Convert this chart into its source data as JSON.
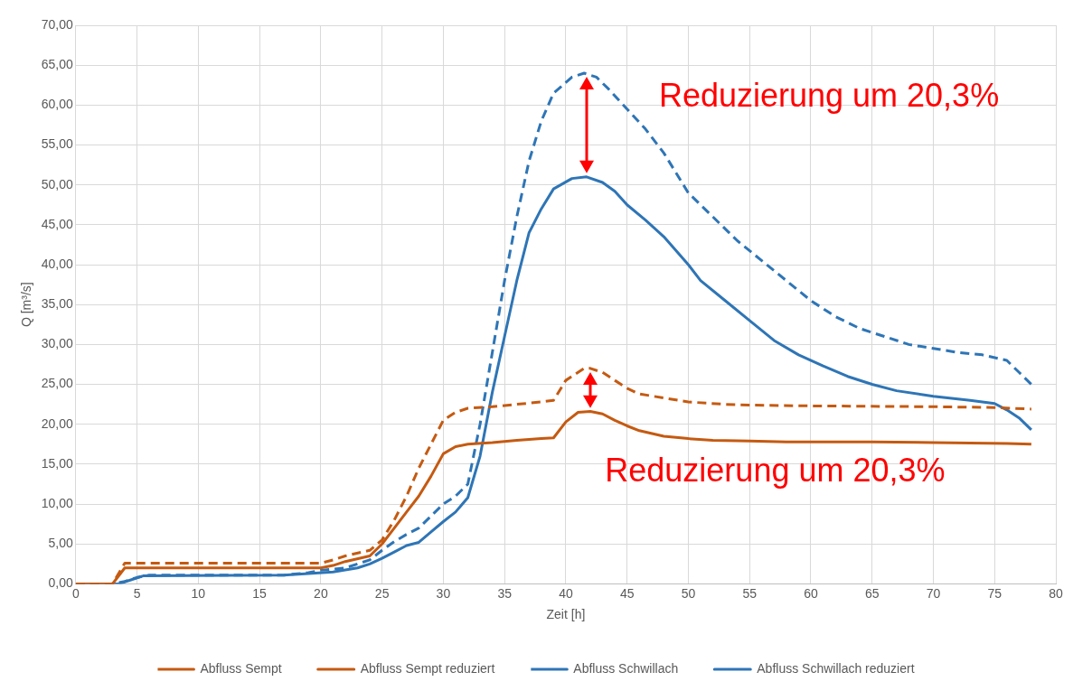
{
  "chart_data": {
    "type": "line",
    "xlabel": "Zeit [h]",
    "ylabel": "Q [m³/s]",
    "xlim": [
      0,
      80
    ],
    "xticks": [
      0,
      5,
      10,
      15,
      20,
      25,
      30,
      35,
      40,
      45,
      50,
      55,
      60,
      65,
      70,
      75,
      80
    ],
    "ylim": [
      0,
      70
    ],
    "yticks": [
      {
        "value": 0,
        "label": "0,00"
      },
      {
        "value": 5,
        "label": "5,00"
      },
      {
        "value": 10,
        "label": "10,00"
      },
      {
        "value": 15,
        "label": "15,00"
      },
      {
        "value": 20,
        "label": "20,00"
      },
      {
        "value": 25,
        "label": "25,00"
      },
      {
        "value": 30,
        "label": "30,00"
      },
      {
        "value": 35,
        "label": "35,00"
      },
      {
        "value": 40,
        "label": "40,00"
      },
      {
        "value": 45,
        "label": "45,00"
      },
      {
        "value": 50,
        "label": "50,00"
      },
      {
        "value": 55,
        "label": "55,00"
      },
      {
        "value": 60,
        "label": "60,00"
      },
      {
        "value": 65,
        "label": "65,00"
      },
      {
        "value": 70,
        "label": "70,00"
      }
    ],
    "grid": true,
    "legend": "bottom",
    "marker": "none",
    "series": [
      {
        "name": "Abfluss Sempt",
        "color": "#c55a11",
        "line_style": "dashed",
        "x": [
          0,
          3,
          4,
          20,
          21,
          22,
          24,
          25,
          26,
          27,
          28,
          29,
          30,
          31,
          32,
          34,
          36,
          38,
          39,
          40,
          41.5,
          42,
          43,
          44,
          45,
          46,
          48,
          50,
          53,
          55,
          60,
          70,
          75,
          78
        ],
        "values": [
          0,
          0,
          2.6,
          2.6,
          3,
          3.5,
          4.2,
          5.5,
          8,
          11,
          14.5,
          17.5,
          20.5,
          21.5,
          22,
          22.2,
          22.5,
          22.8,
          23,
          25.5,
          27,
          27,
          26.5,
          25.5,
          24.5,
          23.8,
          23.3,
          22.8,
          22.5,
          22.4,
          22.3,
          22.2,
          22.1,
          21.9
        ]
      },
      {
        "name": "Abfluss Sempt reduziert",
        "color": "#c55a11",
        "line_style": "solid",
        "x": [
          0,
          3,
          4,
          20,
          21,
          22,
          24,
          25,
          26,
          27,
          28,
          29,
          30,
          31,
          32,
          34,
          36,
          38,
          39,
          40,
          41,
          42,
          43,
          44,
          45,
          46,
          48,
          50,
          52,
          55,
          58,
          65,
          70,
          76,
          78
        ],
        "values": [
          0,
          0,
          2,
          2,
          2.3,
          2.8,
          3.5,
          5,
          7,
          9,
          11,
          13.5,
          16.3,
          17.2,
          17.5,
          17.7,
          18,
          18.2,
          18.3,
          20.3,
          21.5,
          21.6,
          21.3,
          20.5,
          19.8,
          19.2,
          18.5,
          18.2,
          18,
          17.9,
          17.8,
          17.8,
          17.7,
          17.6,
          17.5
        ]
      },
      {
        "name": "Abfluss Schwillach",
        "color": "#2e75b6",
        "line_style": "dashed",
        "x": [
          0,
          3,
          4,
          5,
          6,
          17,
          19,
          20,
          22,
          24,
          25,
          26,
          27,
          28,
          29,
          30,
          31,
          32,
          33,
          34,
          35,
          36,
          37,
          38,
          39,
          40.5,
          41.5,
          42.5,
          43.5,
          45,
          46.5,
          48,
          50,
          52,
          54,
          56,
          58,
          60,
          62,
          64,
          66,
          68,
          70,
          72,
          74,
          76,
          77,
          78
        ],
        "values": [
          0,
          0,
          0.3,
          0.8,
          1.1,
          1.1,
          1.4,
          1.7,
          2,
          3,
          4.2,
          5.3,
          6.2,
          7,
          8.5,
          10,
          11,
          12.5,
          20,
          29,
          38,
          46,
          53,
          58,
          61.5,
          63.5,
          64,
          63.5,
          62,
          59.5,
          57,
          54,
          49,
          46,
          43,
          40.5,
          38,
          35.5,
          33.5,
          32,
          31,
          30,
          29.5,
          29,
          28.7,
          28,
          26.5,
          25
        ]
      },
      {
        "name": "Abfluss Schwillach reduziert",
        "color": "#2e75b6",
        "line_style": "solid",
        "x": [
          0,
          3.5,
          4.5,
          5.5,
          17,
          19,
          21,
          23,
          24,
          25,
          26,
          27,
          28,
          29,
          30,
          31,
          32,
          33,
          34,
          35,
          36,
          37,
          38,
          39,
          40.5,
          41.7,
          43,
          44,
          45,
          46.5,
          48,
          50,
          51,
          53,
          55,
          57,
          59,
          61,
          63,
          65,
          67,
          70,
          73,
          75,
          76,
          77,
          78
        ],
        "values": [
          0,
          0,
          0.5,
          1,
          1.1,
          1.3,
          1.5,
          2,
          2.5,
          3.2,
          4,
          4.8,
          5.2,
          6.5,
          7.8,
          9,
          10.8,
          16,
          24,
          31,
          38,
          44,
          47,
          49.5,
          50.8,
          51,
          50.3,
          49.2,
          47.5,
          45.6,
          43.5,
          40,
          38,
          35.5,
          33,
          30.5,
          28.7,
          27.3,
          26,
          25,
          24.2,
          23.5,
          23,
          22.6,
          21.8,
          20.8,
          19.3
        ]
      }
    ],
    "annotations": [
      "Reduzierung um 20,3%",
      "Reduzierung um 20,3%"
    ]
  }
}
